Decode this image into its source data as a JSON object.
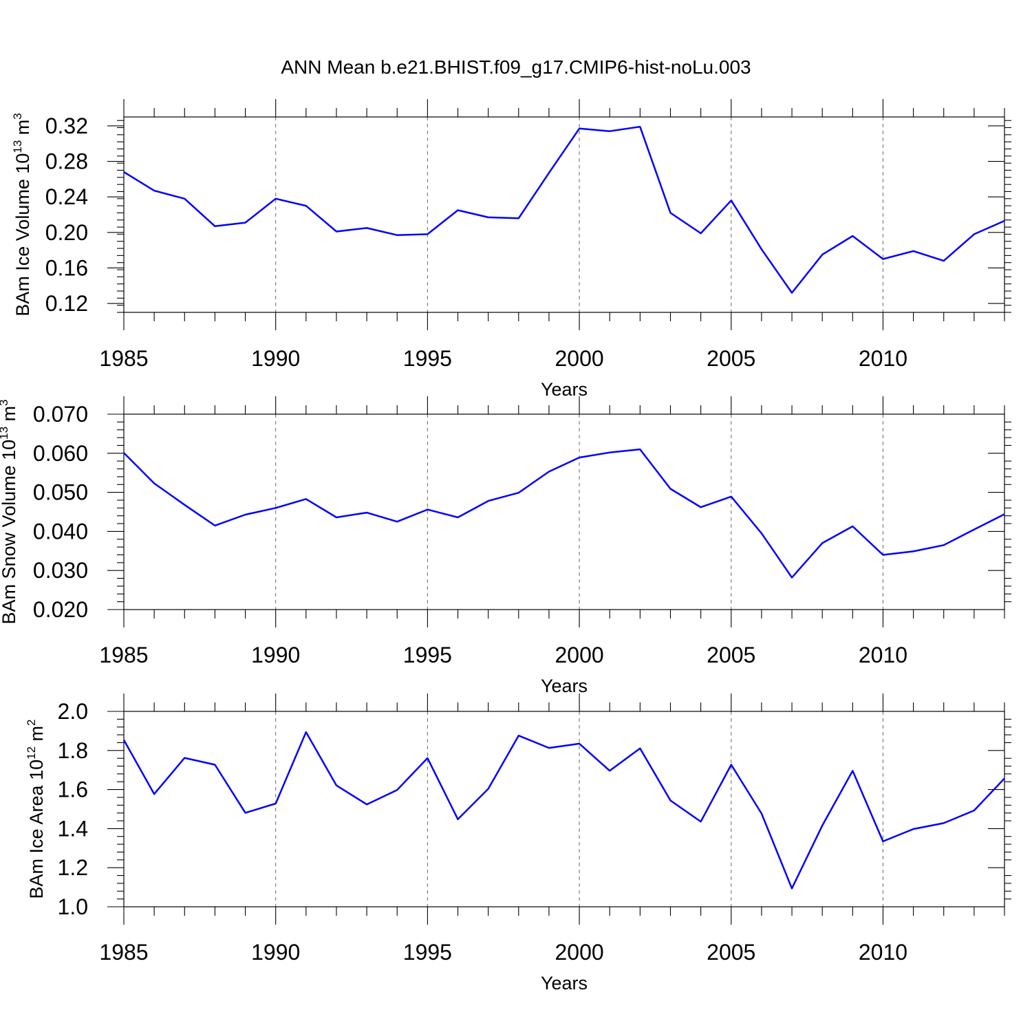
{
  "figure": {
    "title": "ANN Mean b.e21.BHIST.f09_g17.CMIP6-hist-noLu.003"
  },
  "chart_data": [
    {
      "type": "line",
      "xlabel": "Years",
      "ylabel_base": "BAm Ice Volume 10",
      "ylabel_exp": "13",
      "ylabel_unit": "m",
      "ylabel_unit_exp": "3",
      "xlim": [
        1985,
        2014
      ],
      "ylim": [
        0.11,
        0.33
      ],
      "xticks": [
        1985,
        1990,
        1995,
        2000,
        2005,
        2010
      ],
      "xtick_labels": [
        "1985",
        "1990",
        "1995",
        "2000",
        "2005",
        "2010"
      ],
      "yticks": [
        0.12,
        0.16,
        0.2,
        0.24,
        0.28,
        0.32
      ],
      "ytick_labels": [
        "0.12",
        "0.16",
        "0.20",
        "0.24",
        "0.28",
        "0.32"
      ],
      "grid": "dashed vertical at labeled years",
      "series": [
        {
          "name": "BAm Ice Volume",
          "color": "#0000ff",
          "x": [
            1985,
            1986,
            1987,
            1988,
            1989,
            1990,
            1991,
            1992,
            1993,
            1994,
            1995,
            1996,
            1997,
            1998,
            1999,
            2000,
            2001,
            2002,
            2003,
            2004,
            2005,
            2006,
            2007,
            2008,
            2009,
            2010,
            2011,
            2012,
            2013,
            2014
          ],
          "y": [
            0.268,
            0.247,
            0.238,
            0.207,
            0.211,
            0.238,
            0.23,
            0.201,
            0.205,
            0.197,
            0.198,
            0.225,
            0.217,
            0.216,
            0.267,
            0.317,
            0.314,
            0.319,
            0.222,
            0.199,
            0.236,
            0.181,
            0.132,
            0.175,
            0.196,
            0.17,
            0.179,
            0.168,
            0.198,
            0.213
          ]
        }
      ]
    },
    {
      "type": "line",
      "xlabel": "Years",
      "ylabel_base": "BAm Snow Volume 10",
      "ylabel_exp": "13",
      "ylabel_unit": "m",
      "ylabel_unit_exp": "3",
      "xlim": [
        1985,
        2014
      ],
      "ylim": [
        0.02,
        0.07
      ],
      "xticks": [
        1985,
        1990,
        1995,
        2000,
        2005,
        2010
      ],
      "xtick_labels": [
        "1985",
        "1990",
        "1995",
        "2000",
        "2005",
        "2010"
      ],
      "yticks": [
        0.02,
        0.03,
        0.04,
        0.05,
        0.06,
        0.07
      ],
      "ytick_labels": [
        "0.020",
        "0.030",
        "0.040",
        "0.050",
        "0.060",
        "0.070"
      ],
      "grid": "dashed vertical at labeled years",
      "series": [
        {
          "name": "BAm Snow Volume",
          "color": "#0000ff",
          "x": [
            1985,
            1986,
            1987,
            1988,
            1989,
            1990,
            1991,
            1992,
            1993,
            1994,
            1995,
            1996,
            1997,
            1998,
            1999,
            2000,
            2001,
            2002,
            2003,
            2004,
            2005,
            2006,
            2007,
            2008,
            2009,
            2010,
            2011,
            2012,
            2013,
            2014
          ],
          "y": [
            0.0601,
            0.0523,
            0.0468,
            0.0415,
            0.0443,
            0.046,
            0.0483,
            0.0436,
            0.0448,
            0.0425,
            0.0456,
            0.0436,
            0.0478,
            0.0499,
            0.0553,
            0.0589,
            0.0602,
            0.061,
            0.0509,
            0.0462,
            0.0489,
            0.0395,
            0.0282,
            0.037,
            0.0413,
            0.034,
            0.0349,
            0.0365,
            0.0405,
            0.0444
          ]
        }
      ]
    },
    {
      "type": "line",
      "xlabel": "Years",
      "ylabel_base": "BAm Ice Area 10",
      "ylabel_exp": "12",
      "ylabel_unit": "m",
      "ylabel_unit_exp": "2",
      "xlim": [
        1985,
        2014
      ],
      "ylim": [
        1.0,
        2.0
      ],
      "xticks": [
        1985,
        1990,
        1995,
        2000,
        2005,
        2010
      ],
      "xtick_labels": [
        "1985",
        "1990",
        "1995",
        "2000",
        "2005",
        "2010"
      ],
      "yticks": [
        1.0,
        1.2,
        1.4,
        1.6,
        1.8,
        2.0
      ],
      "ytick_labels": [
        "1.0",
        "1.2",
        "1.4",
        "1.6",
        "1.8",
        "2.0"
      ],
      "grid": "dashed vertical at labeled years",
      "series": [
        {
          "name": "BAm Ice Area",
          "color": "#0000ff",
          "x": [
            1985,
            1986,
            1987,
            1988,
            1989,
            1990,
            1991,
            1992,
            1993,
            1994,
            1995,
            1996,
            1997,
            1998,
            1999,
            2000,
            2001,
            2002,
            2003,
            2004,
            2005,
            2006,
            2007,
            2008,
            2009,
            2010,
            2011,
            2012,
            2013,
            2014
          ],
          "y": [
            1.854,
            1.577,
            1.762,
            1.727,
            1.481,
            1.528,
            1.894,
            1.621,
            1.524,
            1.598,
            1.761,
            1.448,
            1.604,
            1.876,
            1.813,
            1.835,
            1.696,
            1.811,
            1.544,
            1.436,
            1.727,
            1.477,
            1.094,
            1.416,
            1.696,
            1.335,
            1.398,
            1.428,
            1.493,
            1.657
          ]
        }
      ]
    }
  ]
}
